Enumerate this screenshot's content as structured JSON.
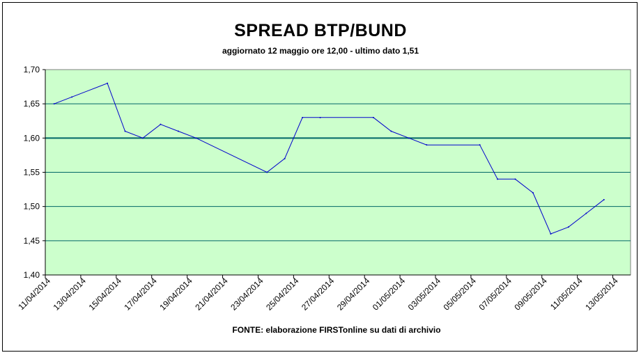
{
  "chart_data": {
    "type": "line",
    "title": "SPREAD BTP/BUND",
    "subtitle": "aggiornato 12 maggio ore 12,00 - ultimo dato 1,51",
    "source": "FONTE:  elaborazione FIRSTonline su dati di archivio",
    "ylim": [
      1.4,
      1.7
    ],
    "yticks": [
      "1,40",
      "1,45",
      "1,50",
      "1,55",
      "1,60",
      "1,65",
      "1,70"
    ],
    "xticks": [
      "11/04/2014",
      "13/04/2014",
      "15/04/2014",
      "17/04/2014",
      "19/04/2014",
      "21/04/2014",
      "23/04/2014",
      "25/04/2014",
      "27/04/2014",
      "29/04/2014",
      "01/05/2014",
      "03/05/2014",
      "05/05/2014",
      "07/05/2014",
      "09/05/2014",
      "11/05/2014",
      "13/05/2014"
    ],
    "grid": true,
    "legend": "none",
    "colors": {
      "plot_background": "#ccffcc",
      "line": "#0000cc",
      "gridline": "#006666"
    },
    "x": [
      "11/04/2014",
      "12/04/2014",
      "14/04/2014",
      "15/04/2014",
      "16/04/2014",
      "17/04/2014",
      "18/04/2014",
      "19/04/2014",
      "23/04/2014",
      "24/04/2014",
      "25/04/2014",
      "26/04/2014",
      "29/04/2014",
      "30/04/2014",
      "01/05/2014",
      "02/05/2014",
      "05/05/2014",
      "06/05/2014",
      "07/05/2014",
      "08/05/2014",
      "09/05/2014",
      "10/05/2014",
      "11/05/2014",
      "12/05/2014"
    ],
    "values": [
      1.65,
      1.66,
      1.68,
      1.61,
      1.6,
      1.62,
      1.61,
      1.6,
      1.55,
      1.57,
      1.63,
      1.63,
      1.63,
      1.61,
      1.6,
      1.59,
      1.59,
      1.54,
      1.54,
      1.52,
      1.46,
      1.47,
      1.49,
      1.51
    ]
  }
}
